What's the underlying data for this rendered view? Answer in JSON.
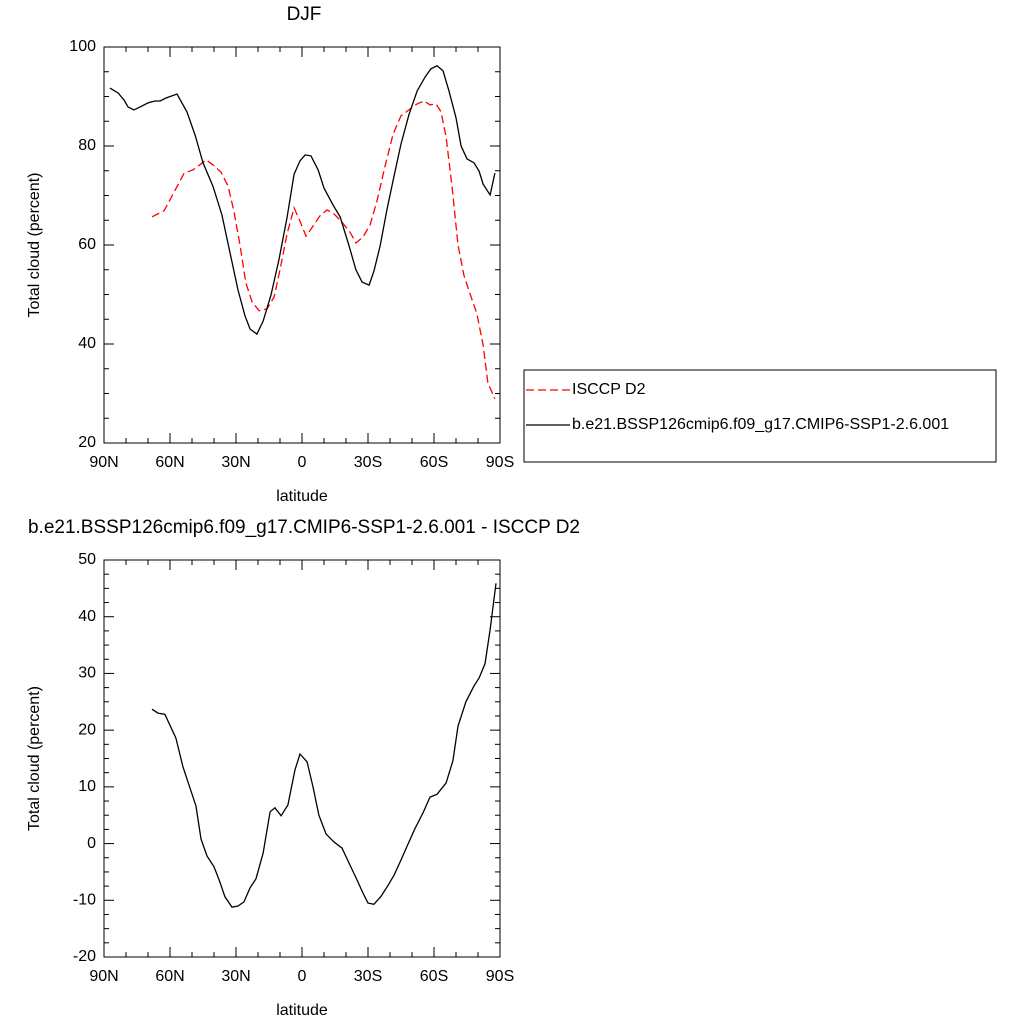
{
  "chart_data": [
    {
      "type": "line",
      "title": "DJF",
      "xlabel": "latitude",
      "ylabel": "Total cloud (percent)",
      "xlim": [
        90,
        -90
      ],
      "xticks": [
        {
          "value": 90,
          "label": "90N"
        },
        {
          "value": 60,
          "label": "60N"
        },
        {
          "value": 30,
          "label": "30N"
        },
        0,
        {
          "value": -30,
          "label": "30S"
        },
        {
          "value": -60,
          "label": "60S"
        },
        {
          "value": -90,
          "label": "90S"
        }
      ],
      "ylim": [
        20,
        100
      ],
      "yticks": [
        20,
        40,
        60,
        80,
        100
      ],
      "legend": "right",
      "series": [
        {
          "name": "ISCCP D2",
          "color": "#ff0000",
          "dashed": true,
          "x": [
            68.2,
            62.7,
            59.1,
            53.6,
            49.5,
            46.4,
            43.6,
            40.5,
            36.8,
            33.6,
            30.9,
            28.2,
            25.5,
            22.7,
            19.5,
            15.9,
            12.7,
            10,
            6.8,
            3.6,
            0.9,
            -1.8,
            -5,
            -8.2,
            -11.4,
            -14.5,
            -18.2,
            -21.8,
            -24.5,
            -27.7,
            -30.9,
            -34.1,
            -37.7,
            -41.4,
            -45,
            -48.6,
            -52.3,
            -55.5,
            -58.2,
            -60.9,
            -63.2,
            -65.5,
            -68.2,
            -70.9,
            -73.6,
            -76.4,
            -79.5,
            -82.3,
            -84.5,
            -87.7
          ],
          "values": [
            65.7,
            66.9,
            69.9,
            74.5,
            75.2,
            76.2,
            77.2,
            76.2,
            74.7,
            71.9,
            66.7,
            60.0,
            52.3,
            48.5,
            46.7,
            47.1,
            49.5,
            55.0,
            62.2,
            67.5,
            64.8,
            61.8,
            63.8,
            65.9,
            67.1,
            66.3,
            64.6,
            62.6,
            60.4,
            61.6,
            64.0,
            68.9,
            75.8,
            82.4,
            86.1,
            87.3,
            88.5,
            89.1,
            88.3,
            88.5,
            86.9,
            81.8,
            71.9,
            60.0,
            53.9,
            50.1,
            46.1,
            39.8,
            32.1,
            28.9
          ]
        },
        {
          "name": "b.e21.BSSP126cmip6.f09_g17.CMIP6-SSP1-2.6.001",
          "color": "#000000",
          "dashed": false,
          "x": [
            87.3,
            83.6,
            80.9,
            79.1,
            76.4,
            73.6,
            70,
            66.8,
            64.5,
            61.8,
            56.8,
            52.3,
            48.6,
            45,
            40.5,
            36.4,
            32.3,
            29.1,
            25.9,
            23.6,
            20.5,
            17.7,
            14.1,
            10.5,
            6.8,
            3.6,
            0.9,
            -1.4,
            -4.1,
            -7.3,
            -10,
            -14.1,
            -17.3,
            -21.4,
            -24.5,
            -27.3,
            -30.5,
            -32.7,
            -35.5,
            -38.6,
            -41.8,
            -45,
            -48.6,
            -52.3,
            -55.9,
            -58.6,
            -61.4,
            -64.1,
            -66.8,
            -70,
            -72.3,
            -75,
            -78.2,
            -80.5,
            -82.3,
            -85.5,
            -87.7
          ],
          "values": [
            91.7,
            90.7,
            89.3,
            87.9,
            87.3,
            87.9,
            88.7,
            89.1,
            89.1,
            89.7,
            90.5,
            86.9,
            82.2,
            76.6,
            71.9,
            66.1,
            57.6,
            50.9,
            45.7,
            43.0,
            42.0,
            44.6,
            49.9,
            57.0,
            65.5,
            74.3,
            77.0,
            78.2,
            78.0,
            75.2,
            71.5,
            68.1,
            65.7,
            59.8,
            55.0,
            52.5,
            51.9,
            54.7,
            59.8,
            67.1,
            73.9,
            80.4,
            86.3,
            91.1,
            93.9,
            95.6,
            96.2,
            95.2,
            91.1,
            85.7,
            80.0,
            77.4,
            76.6,
            74.9,
            72.3,
            70.1,
            74.5
          ]
        }
      ]
    },
    {
      "type": "line",
      "title": "b.e21.BSSP126cmip6.f09_g17.CMIP6-SSP1-2.6.001 - ISCCP D2",
      "xlabel": "latitude",
      "ylabel": "Total cloud (percent)",
      "xlim": [
        90,
        -90
      ],
      "xticks": [
        {
          "value": 90,
          "label": "90N"
        },
        {
          "value": 60,
          "label": "60N"
        },
        {
          "value": 30,
          "label": "30N"
        },
        0,
        {
          "value": -30,
          "label": "30S"
        },
        {
          "value": -60,
          "label": "60S"
        },
        {
          "value": -90,
          "label": "90S"
        }
      ],
      "ylim": [
        -20,
        50
      ],
      "yticks": [
        -20,
        -10,
        0,
        10,
        20,
        30,
        40,
        50
      ],
      "series": [
        {
          "color": "#000000",
          "dashed": false,
          "x": [
            68.2,
            65.5,
            62.3,
            57.3,
            54.1,
            48.2,
            45.9,
            43.2,
            40.0,
            37.7,
            35.0,
            31.8,
            29.1,
            26.4,
            23.6,
            20.9,
            17.7,
            14.5,
            12.3,
            9.5,
            6.4,
            3.2,
            0.9,
            -2.3,
            -5,
            -7.7,
            -10.9,
            -14.5,
            -18.2,
            -21.8,
            -25,
            -27.7,
            -30,
            -32.7,
            -35.9,
            -38.6,
            -41.8,
            -45,
            -48.2,
            -51.4,
            -55,
            -58.2,
            -61.4,
            -65.5,
            -68.6,
            -70.9,
            -74.5,
            -78.2,
            -80.5,
            -83.2,
            -85.5,
            -88.2
          ],
          "values": [
            23.7,
            23.0,
            22.8,
            18.6,
            13.5,
            6.6,
            0.8,
            -2.2,
            -4.1,
            -6.4,
            -9.4,
            -11.2,
            -11.0,
            -10.3,
            -7.8,
            -6.2,
            -1.7,
            5.6,
            6.3,
            4.9,
            6.8,
            13.0,
            15.8,
            14.4,
            10.0,
            5.0,
            1.7,
            0.3,
            -0.8,
            -3.8,
            -6.4,
            -8.7,
            -10.5,
            -10.7,
            -9.3,
            -7.7,
            -5.6,
            -2.9,
            -0.1,
            2.7,
            5.4,
            8.2,
            8.7,
            10.7,
            14.6,
            20.7,
            25.0,
            27.8,
            29.2,
            31.7,
            37.7,
            45.9
          ]
        }
      ]
    }
  ]
}
